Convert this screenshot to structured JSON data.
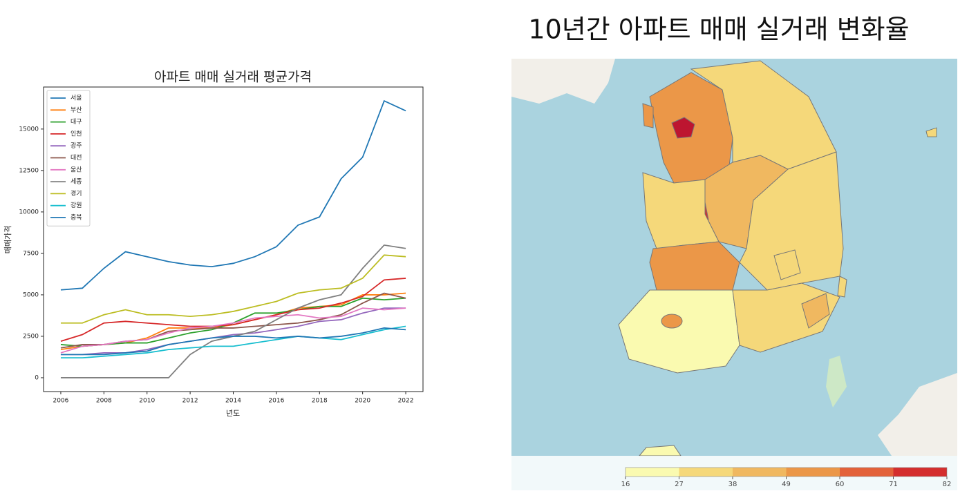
{
  "chart_data": {
    "type": "line",
    "title": "아파트 매매 실거래 평균가격",
    "xlabel": "년도",
    "ylabel": "매매가격",
    "x": [
      2006,
      2007,
      2008,
      2009,
      2010,
      2011,
      2012,
      2013,
      2014,
      2015,
      2016,
      2017,
      2018,
      2019,
      2020,
      2021,
      2022
    ],
    "xlim": [
      2005.2,
      2022.8
    ],
    "xticks": [
      2006,
      2008,
      2010,
      2012,
      2014,
      2016,
      2018,
      2020,
      2022
    ],
    "ylim": [
      -835,
      17535
    ],
    "yticks": [
      0,
      2500,
      5000,
      7500,
      10000,
      12500,
      15000
    ],
    "legend": "upper left",
    "grid": false,
    "series": [
      {
        "name": "서울",
        "color": "#1f77b4",
        "values": [
          5300,
          5400,
          6600,
          7600,
          7300,
          7000,
          6800,
          6700,
          6900,
          7300,
          7900,
          9200,
          9700,
          12000,
          13300,
          16700,
          16100
        ]
      },
      {
        "name": "부산",
        "color": "#ff7f0e",
        "values": [
          1700,
          1900,
          2000,
          2100,
          2400,
          3000,
          3000,
          3000,
          3200,
          3500,
          3800,
          4200,
          4300,
          4400,
          5000,
          5000,
          5100
        ]
      },
      {
        "name": "대구",
        "color": "#2ca02c",
        "values": [
          2000,
          1900,
          2000,
          2100,
          2100,
          2400,
          2700,
          2900,
          3300,
          3900,
          3900,
          4100,
          4300,
          4300,
          4800,
          4700,
          4800
        ]
      },
      {
        "name": "인천",
        "color": "#d62728",
        "values": [
          2200,
          2600,
          3300,
          3400,
          3300,
          3200,
          3100,
          3100,
          3200,
          3500,
          3800,
          4100,
          4200,
          4500,
          4900,
          5900,
          6000
        ]
      },
      {
        "name": "광주",
        "color": "#9467bd",
        "values": [
          1400,
          1400,
          1500,
          1500,
          1700,
          2000,
          2200,
          2400,
          2600,
          2700,
          2900,
          3100,
          3400,
          3500,
          3900,
          4200,
          4200
        ]
      },
      {
        "name": "대전",
        "color": "#8c564b",
        "values": [
          1800,
          2000,
          2000,
          2200,
          2300,
          2800,
          2900,
          3000,
          3000,
          3100,
          3200,
          3300,
          3500,
          3800,
          4500,
          5100,
          4800
        ]
      },
      {
        "name": "울산",
        "color": "#e377c2",
        "values": [
          1500,
          1900,
          2000,
          2200,
          2300,
          2700,
          3000,
          3100,
          3300,
          3600,
          3700,
          3800,
          3600,
          3700,
          4200,
          4100,
          4200
        ]
      },
      {
        "name": "세종",
        "color": "#7f7f7f",
        "values": [
          0,
          0,
          0,
          0,
          0,
          0,
          1400,
          2200,
          2500,
          2800,
          3500,
          4200,
          4700,
          5000,
          6600,
          8000,
          7800
        ]
      },
      {
        "name": "경기",
        "color": "#bcbd22",
        "values": [
          3300,
          3300,
          3800,
          4100,
          3800,
          3800,
          3700,
          3800,
          4000,
          4300,
          4600,
          5100,
          5300,
          5400,
          6000,
          7400,
          7300
        ]
      },
      {
        "name": "강원",
        "color": "#17becf",
        "values": [
          1200,
          1200,
          1300,
          1400,
          1500,
          1700,
          1800,
          1900,
          1900,
          2100,
          2300,
          2500,
          2400,
          2300,
          2600,
          2900,
          3100
        ]
      },
      {
        "name": "충북",
        "color": "#1f77b4",
        "values": [
          1400,
          1400,
          1400,
          1500,
          1600,
          2000,
          2200,
          2400,
          2500,
          2500,
          2400,
          2500,
          2400,
          2500,
          2700,
          3000,
          2900
        ]
      }
    ]
  },
  "map": {
    "title": "10년간 아파트 매매 실거래 변화율",
    "colorbar": {
      "ticks": [
        16,
        27,
        38,
        49,
        60,
        71,
        82
      ],
      "colors": [
        "#fafab0",
        "#f5d87a",
        "#f0b860",
        "#eb9748",
        "#e3623a",
        "#d42e2e",
        "#bd1530"
      ]
    }
  }
}
